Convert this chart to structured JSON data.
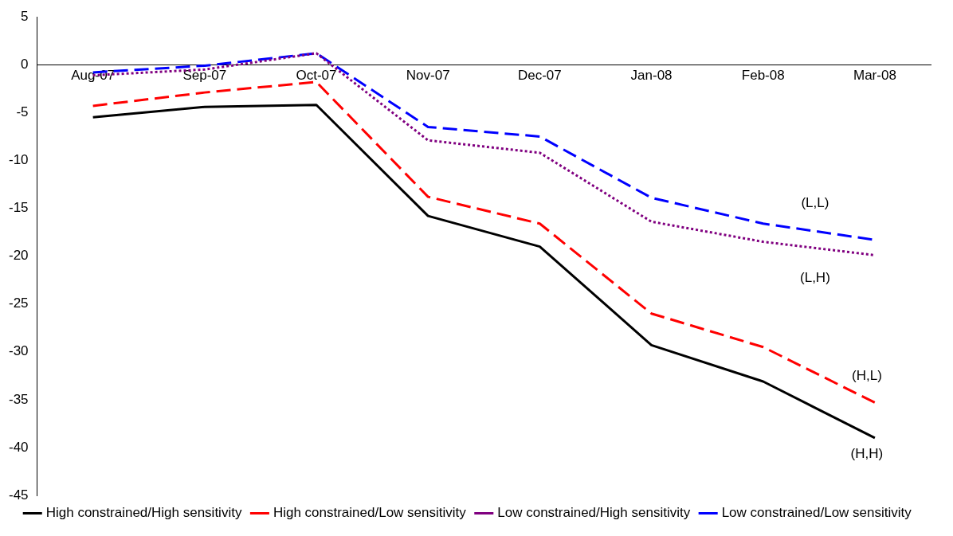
{
  "chart_data": {
    "type": "line",
    "categories": [
      "Aug-07",
      "Sep-07",
      "Oct-07",
      "Nov-07",
      "Dec-07",
      "Jan-08",
      "Feb-08",
      "Mar-08"
    ],
    "series": [
      {
        "name": "High constrained/High sensitivity",
        "color": "#000000",
        "line_style": "solid",
        "values": [
          -5.5,
          -4.4,
          -4.2,
          -15.8,
          -19.0,
          -29.3,
          -33.1,
          -39.0
        ]
      },
      {
        "name": "High constrained/Low sensitivity",
        "color": "#ff0000",
        "line_style": "dashed",
        "values": [
          -4.3,
          -2.9,
          -1.8,
          -13.8,
          -16.6,
          -26.0,
          -29.5,
          -35.3
        ]
      },
      {
        "name": "Low constrained/High sensitivity",
        "color": "#800080",
        "line_style": "dotted",
        "values": [
          -1.1,
          -0.5,
          1.2,
          -7.9,
          -9.2,
          -16.4,
          -18.5,
          -19.9
        ]
      },
      {
        "name": "Low constrained/Low sensitivity",
        "color": "#0000ff",
        "line_style": "dashed",
        "values": [
          -0.8,
          -0.1,
          1.2,
          -6.5,
          -7.5,
          -13.9,
          -16.6,
          -18.3
        ]
      }
    ],
    "ylim": [
      -45,
      5
    ],
    "yticks": [
      5,
      0,
      -5,
      -10,
      -15,
      -20,
      -25,
      -30,
      -35,
      -40,
      -45
    ],
    "grid": false,
    "legend": "bottom",
    "marker": "none",
    "annotations": [
      "(L,L)",
      "(L,H)",
      "(H,L)",
      "(H,H)"
    ]
  }
}
